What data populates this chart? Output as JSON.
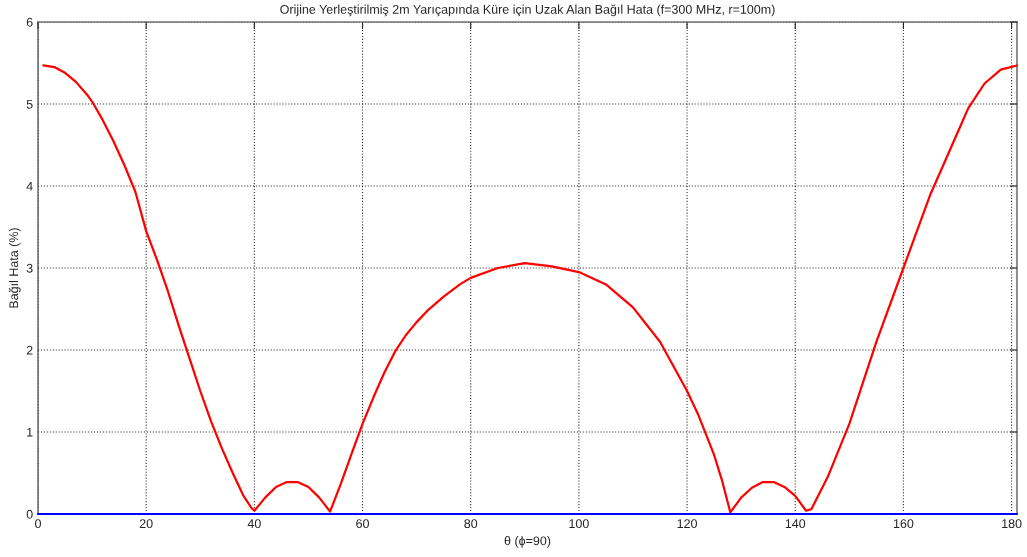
{
  "chart_data": {
    "type": "line",
    "title": "Orijine Yerleştirilmiş 2m Yarıçapında Küre için Uzak Alan Bağıl Hata (f=300 MHz, r=100m)",
    "xlabel": "θ (ϕ=90)",
    "ylabel": "Bağıl Hata (%)",
    "series": [
      {
        "color": "#ff0000",
        "x": [
          1,
          3,
          5,
          7,
          9,
          10,
          12,
          14,
          16,
          18,
          20,
          22,
          24,
          26,
          28,
          30,
          32,
          34,
          36,
          38,
          39.5,
          40,
          42,
          44,
          46,
          48,
          50,
          52,
          54,
          56,
          58,
          60,
          62,
          64,
          66,
          68,
          70,
          72,
          75,
          78,
          80,
          85,
          90,
          95,
          100,
          105,
          110,
          115,
          120,
          122,
          125,
          126.5,
          128,
          130,
          132,
          134,
          136,
          138,
          140,
          142,
          143,
          146,
          150,
          155,
          160,
          165,
          170,
          172,
          175,
          178,
          181
        ],
        "values": [
          5.47,
          5.45,
          5.38,
          5.27,
          5.12,
          5.03,
          4.8,
          4.54,
          4.25,
          3.93,
          3.45,
          3.1,
          2.72,
          2.3,
          1.9,
          1.5,
          1.13,
          0.8,
          0.5,
          0.22,
          0.07,
          0.04,
          0.2,
          0.33,
          0.39,
          0.39,
          0.33,
          0.2,
          0.03,
          0.37,
          0.74,
          1.1,
          1.42,
          1.72,
          1.98,
          2.18,
          2.34,
          2.48,
          2.65,
          2.8,
          2.88,
          3.0,
          3.06,
          3.02,
          2.95,
          2.8,
          2.52,
          2.1,
          1.5,
          1.22,
          0.72,
          0.4,
          0.02,
          0.2,
          0.32,
          0.39,
          0.39,
          0.33,
          0.22,
          0.04,
          0.06,
          0.45,
          1.1,
          2.1,
          3.0,
          3.9,
          4.65,
          4.95,
          5.25,
          5.42,
          5.47
        ]
      },
      {
        "color": "#0000ff",
        "x": [
          0,
          181
        ],
        "values": [
          0,
          0
        ]
      }
    ],
    "xlim": [
      0,
      181
    ],
    "xticks": [
      0,
      20,
      40,
      60,
      80,
      100,
      120,
      140,
      160,
      180
    ],
    "ylim": [
      0,
      6
    ],
    "yticks": [
      0,
      1,
      2,
      3,
      4,
      5,
      6
    ],
    "grid": true,
    "line_style": "solid"
  }
}
